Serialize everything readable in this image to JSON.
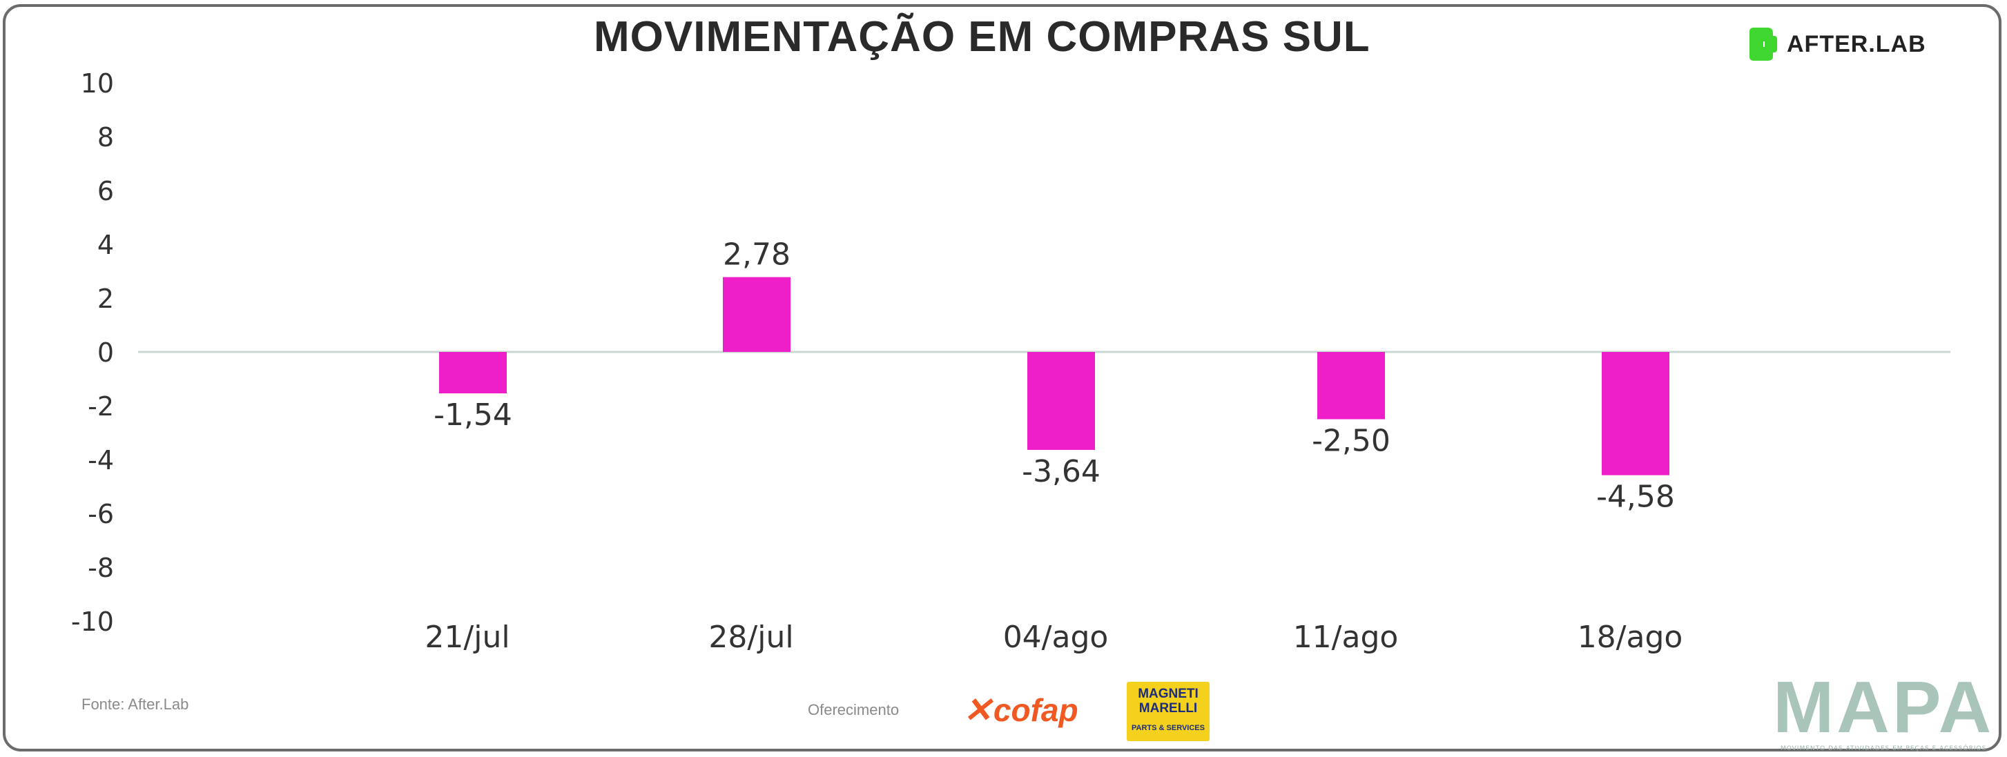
{
  "header": {
    "title": "MOVIMENTAÇÃO EM COMPRAS SUL",
    "brand": "AFTER.LAB"
  },
  "footer": {
    "source": "Fonte: After.Lab",
    "sponsor_label": "Oferecimento",
    "cofap": "cofap",
    "magneti_line1": "MAGNETI",
    "magneti_line2": "MARELLI",
    "magneti_line3": "PARTS & SERVICES",
    "mapa": "MAPA",
    "mapa_tagline": "MOVIMENTO DAS ATIVIDADES EM PEÇAS E ACESSÓRIOS"
  },
  "colors": {
    "bar": "#ee1fc8",
    "zero_line": "#c8d6d2",
    "text": "#333333",
    "brand_green": "#3fd62f"
  },
  "chart_data": {
    "type": "bar",
    "title": "MOVIMENTAÇÃO EM COMPRAS SUL",
    "categories": [
      "21/jul",
      "28/jul",
      "04/ago",
      "11/ago",
      "18/ago"
    ],
    "values": [
      -1.54,
      2.78,
      -3.64,
      -2.5,
      -4.58
    ],
    "labels": [
      "-1,54",
      "2,78",
      "-3,64",
      "-2,50",
      "-4,58"
    ],
    "yticks": [
      10,
      8,
      6,
      4,
      2,
      0,
      -2,
      -4,
      -6,
      -8,
      -10
    ],
    "ylim": [
      -10,
      10
    ],
    "xlabel": "",
    "ylabel": "",
    "grid": false,
    "legend": "none"
  }
}
